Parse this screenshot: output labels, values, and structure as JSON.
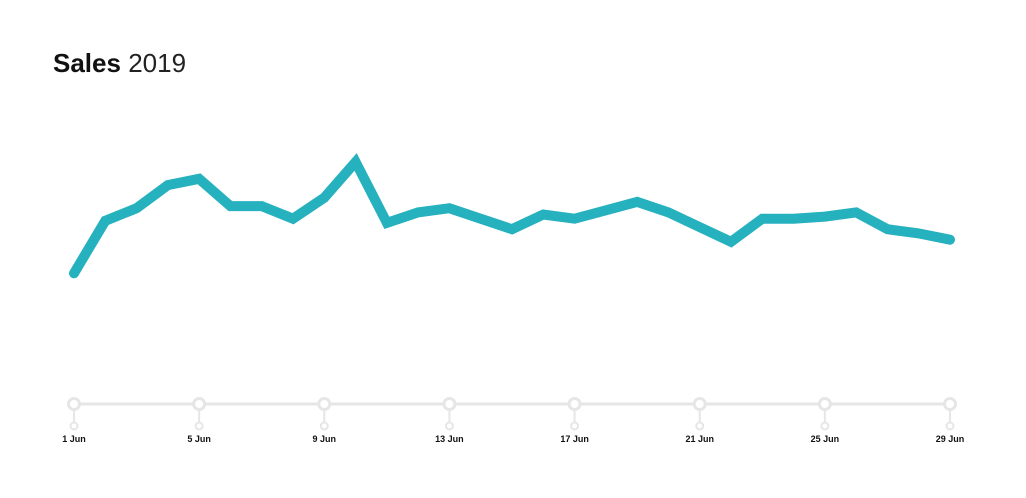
{
  "header": {
    "title_strong": "Sales",
    "title_light": "2019"
  },
  "colors": {
    "line": "#26b1be",
    "axis": "#e6e6e6",
    "tick_text": "#111111"
  },
  "chart_data": {
    "type": "line",
    "title": "Sales 2019",
    "xlabel": "",
    "ylabel": "",
    "grid": false,
    "x_ticks": [
      "1 Jun",
      "5 Jun",
      "9 Jun",
      "13 Jun",
      "17 Jun",
      "21 Jun",
      "25 Jun",
      "29 Jun"
    ],
    "x": [
      "1 Jun",
      "2 Jun",
      "3 Jun",
      "4 Jun",
      "5 Jun",
      "6 Jun",
      "7 Jun",
      "8 Jun",
      "9 Jun",
      "10 Jun",
      "11 Jun",
      "12 Jun",
      "13 Jun",
      "14 Jun",
      "15 Jun",
      "16 Jun",
      "17 Jun",
      "18 Jun",
      "19 Jun",
      "20 Jun",
      "21 Jun",
      "22 Jun",
      "23 Jun",
      "24 Jun",
      "25 Jun",
      "26 Jun",
      "27 Jun",
      "28 Jun",
      "29 Jun"
    ],
    "series": [
      {
        "values": [
          27,
          52,
          58,
          69,
          72,
          59,
          59,
          53,
          63,
          80,
          51,
          56,
          58,
          53,
          48,
          55,
          53,
          57,
          61,
          56,
          49,
          42,
          53,
          53,
          54,
          56,
          48,
          46,
          43
        ]
      }
    ],
    "ylim": [
      0,
      100
    ]
  }
}
